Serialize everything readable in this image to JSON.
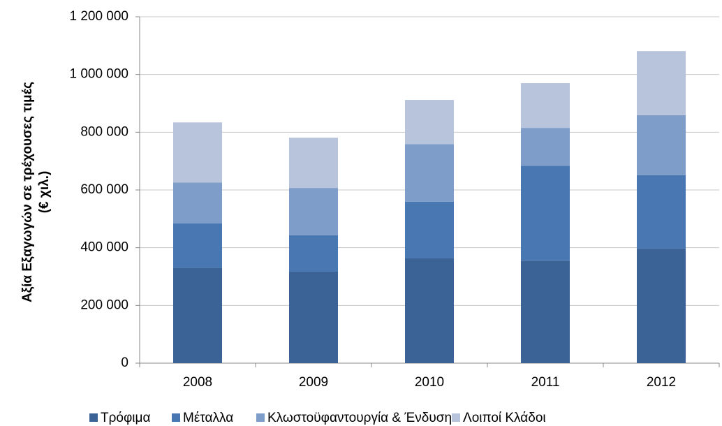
{
  "chart_data": {
    "type": "stacked_bar",
    "ylabel": [
      "Αξία  Εξαγωγών σε τρέχουσες τιμές",
      "(€ χιλ.)"
    ],
    "categories": [
      "2008",
      "2009",
      "2010",
      "2011",
      "2012"
    ],
    "series": [
      {
        "name": "Τρόφιμα",
        "color": "#3c6396",
        "values": [
          330000,
          317000,
          363000,
          355000,
          397000
        ]
      },
      {
        "name": "Μέταλλα",
        "color": "#4877b1",
        "values": [
          154000,
          126000,
          196000,
          329000,
          254000
        ]
      },
      {
        "name": "Κλωστοϋφαντουργία & Ένδυση",
        "color": "#7e9dc8",
        "values": [
          142000,
          164000,
          200000,
          131000,
          208000
        ]
      },
      {
        "name": "Λοιποί Κλάδοι",
        "color": "#b7c4dc",
        "values": [
          208000,
          174000,
          153000,
          155000,
          222000
        ]
      }
    ],
    "ylim": [
      0,
      1200000
    ],
    "yticks": [
      0,
      {
        "value": 200000,
        "label": "200 000"
      },
      {
        "value": 400000,
        "label": "400 000"
      },
      {
        "value": 600000,
        "label": "600 000"
      },
      {
        "value": 800000,
        "label": "800 000"
      },
      {
        "value": 1000000,
        "label": "1 000 000"
      },
      {
        "value": 1200000,
        "label": "1 200 000"
      }
    ],
    "grid": true,
    "legend": "bottom"
  }
}
